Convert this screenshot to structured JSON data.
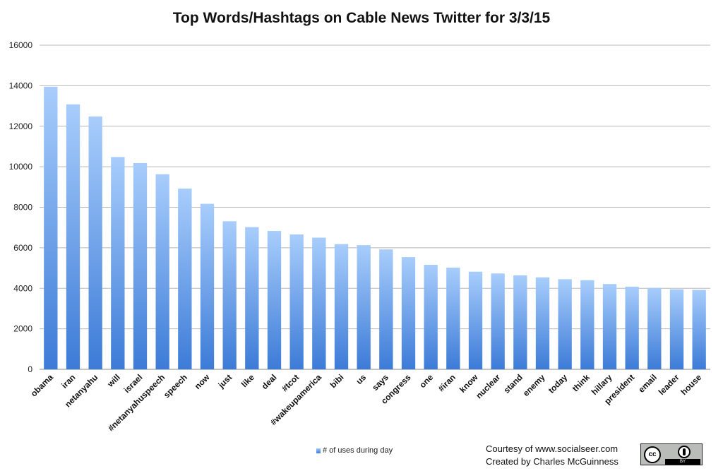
{
  "chart_data": {
    "type": "bar",
    "title": "Top Words/Hashtags on Cable News Twitter for 3/3/15",
    "categories": [
      "obama",
      "iran",
      "netanyahu",
      "will",
      "israel",
      "#netanyahuspeech",
      "speech",
      "now",
      "just",
      "like",
      "deal",
      "#tcot",
      "#wakeupamerica",
      "bibi",
      "us",
      "says",
      "congress",
      "one",
      "#iran",
      "know",
      "nuclear",
      "stand",
      "enemy",
      "today",
      "think",
      "hillary",
      "president",
      "email",
      "leader",
      "house"
    ],
    "series": [
      {
        "name": "# of uses during day",
        "values": [
          13950,
          13080,
          12480,
          10480,
          10180,
          9630,
          8920,
          8170,
          7310,
          7020,
          6830,
          6660,
          6500,
          6180,
          6130,
          5920,
          5540,
          5160,
          5020,
          4820,
          4730,
          4640,
          4540,
          4450,
          4400,
          4210,
          4080,
          4020,
          3950,
          3920
        ]
      }
    ],
    "yticks": [
      "0",
      "2000",
      "4000",
      "6000",
      "8000",
      "10000",
      "12000",
      "14000",
      "16000"
    ],
    "ylim": [
      0,
      16000
    ],
    "grid": true,
    "legend_position": "bottom",
    "bar_color_top": "#a8cdfc",
    "bar_color_bottom": "#3c7bd7"
  },
  "credits": {
    "line1": "Courtesy of www.socialseer.com",
    "line2": "Created by Charles McGuinness"
  },
  "license_badge": {
    "cc": "cc",
    "by": "BY"
  }
}
